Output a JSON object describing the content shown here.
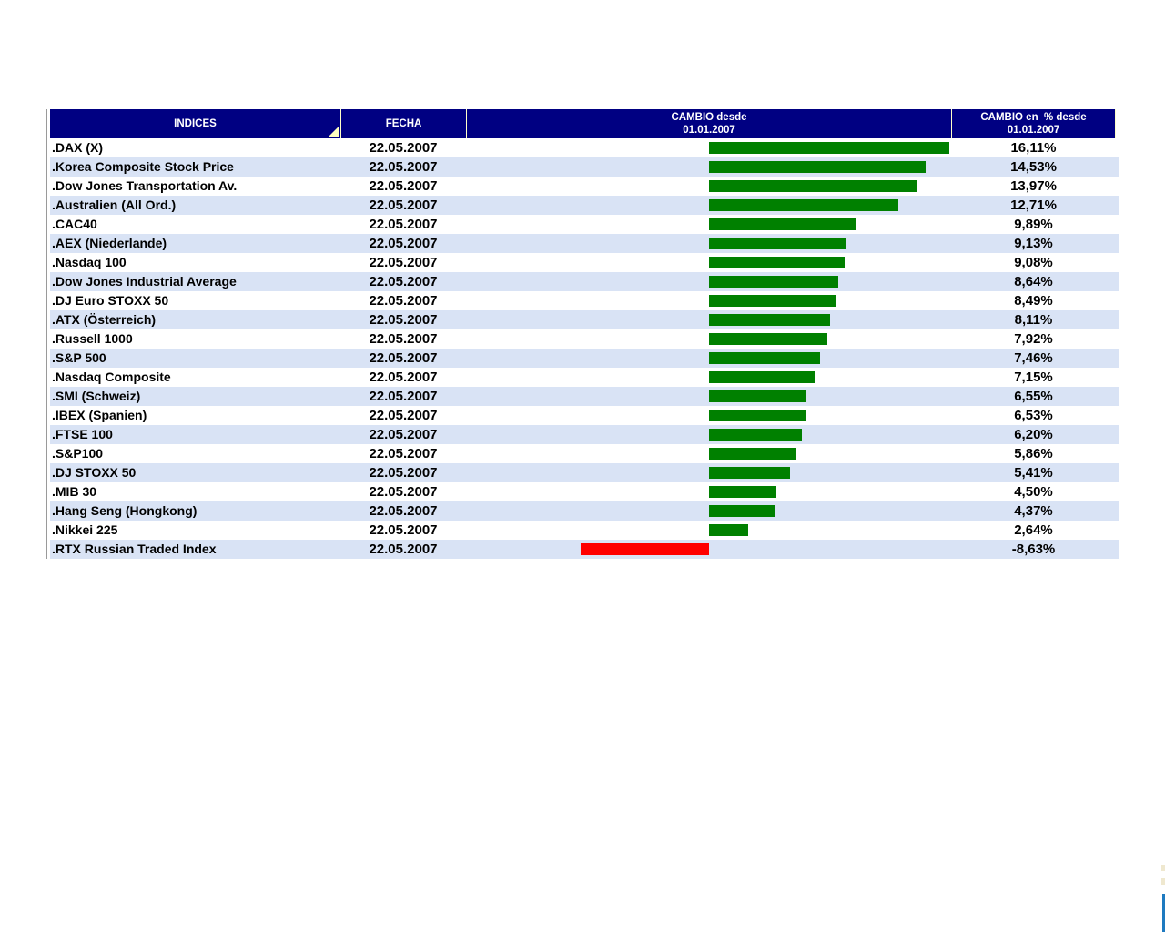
{
  "colors": {
    "header_bg": "#000082",
    "header_text": "#ffffff",
    "header_divider": "#ffffc8",
    "sort_triangle": "#ffffc0",
    "row_bg": "#ffffff",
    "row_alt_bg": "#d9e3f5",
    "positive_bar": "#008000",
    "negative_bar": "#ff0000",
    "table_left_border": "#9a9a9a",
    "edge_mark": "#efe8cf",
    "edge_line": "#1e7ac0",
    "text": "#000000"
  },
  "header": {
    "indices": "INDICES",
    "fecha": "FECHA",
    "cambio_line1": "CAMBIO desde",
    "cambio_line2": "01.01.2007",
    "cambio_pct_line1": "CAMBIO en  % desde",
    "cambio_pct_line2": "01.01.2007"
  },
  "table": {
    "rows": [
      {
        "index": ".DAX (X)",
        "date": "22.05.2007",
        "change_pct": 16.11,
        "change_label": "16,11%"
      },
      {
        "index": ".Korea Composite Stock Price",
        "date": "22.05.2007",
        "change_pct": 14.53,
        "change_label": "14,53%"
      },
      {
        "index": ".Dow Jones Transportation Av.",
        "date": "22.05.2007",
        "change_pct": 13.97,
        "change_label": "13,97%"
      },
      {
        "index": ".Australien (All Ord.)",
        "date": "22.05.2007",
        "change_pct": 12.71,
        "change_label": "12,71%"
      },
      {
        "index": ".CAC40",
        "date": "22.05.2007",
        "change_pct": 9.89,
        "change_label": "9,89%"
      },
      {
        "index": ".AEX (Niederlande)",
        "date": "22.05.2007",
        "change_pct": 9.13,
        "change_label": "9,13%"
      },
      {
        "index": ".Nasdaq 100",
        "date": "22.05.2007",
        "change_pct": 9.08,
        "change_label": "9,08%"
      },
      {
        "index": ".Dow Jones Industrial Average",
        "date": "22.05.2007",
        "change_pct": 8.64,
        "change_label": "8,64%"
      },
      {
        "index": ".DJ Euro STOXX 50",
        "date": "22.05.2007",
        "change_pct": 8.49,
        "change_label": "8,49%"
      },
      {
        "index": ".ATX (Österreich)",
        "date": "22.05.2007",
        "change_pct": 8.11,
        "change_label": "8,11%"
      },
      {
        "index": ".Russell 1000",
        "date": "22.05.2007",
        "change_pct": 7.92,
        "change_label": "7,92%"
      },
      {
        "index": ".S&P 500",
        "date": "22.05.2007",
        "change_pct": 7.46,
        "change_label": "7,46%"
      },
      {
        "index": ".Nasdaq Composite",
        "date": "22.05.2007",
        "change_pct": 7.15,
        "change_label": "7,15%"
      },
      {
        "index": ".SMI (Schweiz)",
        "date": "22.05.2007",
        "change_pct": 6.55,
        "change_label": "6,55%"
      },
      {
        "index": ".IBEX (Spanien)",
        "date": "22.05.2007",
        "change_pct": 6.53,
        "change_label": "6,53%"
      },
      {
        "index": ".FTSE 100",
        "date": "22.05.2007",
        "change_pct": 6.2,
        "change_label": "6,20%"
      },
      {
        "index": ".S&P100",
        "date": "22.05.2007",
        "change_pct": 5.86,
        "change_label": "5,86%"
      },
      {
        "index": ".DJ STOXX 50",
        "date": "22.05.2007",
        "change_pct": 5.41,
        "change_label": "5,41%"
      },
      {
        "index": ".MIB 30",
        "date": "22.05.2007",
        "change_pct": 4.5,
        "change_label": "4,50%"
      },
      {
        "index": ".Hang Seng (Hongkong)",
        "date": "22.05.2007",
        "change_pct": 4.37,
        "change_label": "4,37%"
      },
      {
        "index": ".Nikkei 225",
        "date": "22.05.2007",
        "change_pct": 2.64,
        "change_label": "2,64%"
      },
      {
        "index": ".RTX Russian Traded Index",
        "date": "22.05.2007",
        "change_pct": -8.63,
        "change_label": "-8,63%"
      }
    ]
  },
  "chart_data": {
    "type": "bar",
    "orientation": "horizontal",
    "title": "CAMBIO desde 01.01.2007",
    "categories": [
      ".DAX (X)",
      ".Korea Composite Stock Price",
      ".Dow Jones Transportation Av.",
      ".Australien (All Ord.)",
      ".CAC40",
      ".AEX (Niederlande)",
      ".Nasdaq 100",
      ".Dow Jones Industrial Average",
      ".DJ Euro STOXX 50",
      ".ATX (Österreich)",
      ".Russell 1000",
      ".S&P 500",
      ".Nasdaq Composite",
      ".SMI (Schweiz)",
      ".IBEX (Spanien)",
      ".FTSE 100",
      ".S&P100",
      ".DJ STOXX 50",
      ".MIB 30",
      ".Hang Seng (Hongkong)",
      ".Nikkei 225",
      ".RTX Russian Traded Index"
    ],
    "values": [
      16.11,
      14.53,
      13.97,
      12.71,
      9.89,
      9.13,
      9.08,
      8.64,
      8.49,
      8.11,
      7.92,
      7.46,
      7.15,
      6.55,
      6.53,
      6.2,
      5.86,
      5.41,
      4.5,
      4.37,
      2.64,
      -8.63
    ],
    "value_labels": [
      "16,11%",
      "14,53%",
      "13,97%",
      "12,71%",
      "9,89%",
      "9,13%",
      "9,08%",
      "8,64%",
      "8,49%",
      "8,11%",
      "7,92%",
      "7,46%",
      "7,15%",
      "6,55%",
      "6,53%",
      "6,20%",
      "5,86%",
      "5,41%",
      "4,50%",
      "4,37%",
      "2,64%",
      "-8,63%"
    ],
    "xlim": [
      -10,
      17
    ],
    "grid": false,
    "legend": false,
    "positive_color": "#008000",
    "negative_color": "#ff0000"
  }
}
